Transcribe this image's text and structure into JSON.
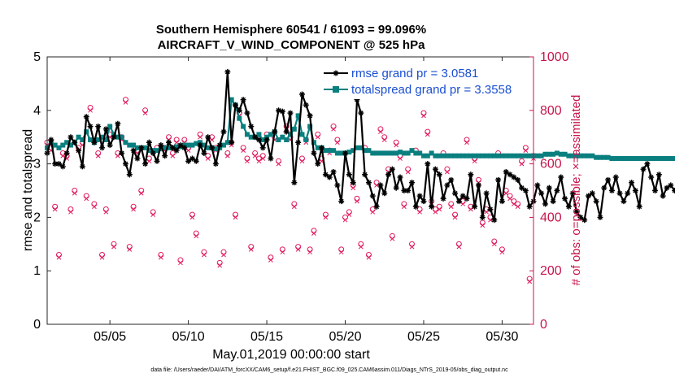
{
  "chart_data": {
    "type": "line",
    "title": "Southern Hemisphere 60541 / 61093 = 99.096%",
    "subtitle": "AIRCRAFT_V_WIND_COMPONENT @ 525 hPa",
    "xlabel": "May.01,2019 00:00:00 start",
    "ylabel": "rmse and totalspread",
    "ylabel_right": "# of obs: o=possible; ×=assimilated",
    "footnote": "data file: /Users/raeder/DAI/ATM_forcXX/CAM6_setup/f.e21.FHIST_BGC.f09_025.CAM6assim.011/Diags_NTrS_2019-05/obs_diag_output.nc",
    "xlim": [
      1.0,
      32.0
    ],
    "ylim": [
      0,
      5
    ],
    "ylim_right": [
      0,
      1000
    ],
    "x_ticks": [
      5,
      10,
      15,
      20,
      25,
      30
    ],
    "x_tick_labels": [
      "05/05",
      "05/10",
      "05/15",
      "05/20",
      "05/25",
      "05/30"
    ],
    "y_ticks": [
      0,
      1,
      2,
      3,
      4,
      5
    ],
    "y_tick_labels": [
      "0",
      "1",
      "2",
      "3",
      "4",
      "5"
    ],
    "y_right_ticks": [
      0,
      200,
      400,
      600,
      800,
      1000
    ],
    "y_right_tick_labels": [
      "0",
      "200",
      "400",
      "600",
      "800",
      "1000"
    ],
    "legend_position": "top-right",
    "series": [
      {
        "name": "rmse grand pr = 3.0581",
        "color": "#000000",
        "marker": "asterisk",
        "x_start": 1.0,
        "x_step": 0.25,
        "values": [
          3.2,
          3.45,
          3.0,
          3.0,
          2.95,
          3.2,
          3.5,
          3.4,
          3.25,
          2.95,
          3.88,
          3.7,
          3.4,
          3.7,
          3.3,
          3.65,
          3.35,
          3.5,
          3.75,
          3.2,
          3.0,
          2.8,
          3.25,
          3.1,
          3.3,
          3.0,
          3.4,
          3.2,
          3.05,
          3.35,
          3.15,
          3.4,
          3.3,
          3.25,
          3.35,
          3.3,
          3.05,
          3.1,
          3.05,
          3.35,
          3.2,
          3.5,
          3.3,
          3.0,
          3.35,
          3.6,
          4.72,
          3.4,
          4.1,
          4.0,
          4.2,
          3.95,
          3.7,
          3.5,
          3.45,
          3.3,
          3.45,
          3.1,
          3.6,
          4.0,
          3.98,
          3.6,
          3.95,
          2.65,
          3.4,
          4.3,
          4.1,
          3.9,
          3.2,
          3.0,
          3.3,
          2.8,
          2.75,
          2.85,
          2.6,
          2.3,
          3.2,
          2.8,
          2.65,
          4.2,
          3.95,
          2.8,
          2.65,
          2.4,
          2.2,
          2.6,
          2.45,
          2.8,
          2.9,
          2.55,
          2.75,
          2.5,
          2.5,
          2.65,
          2.2,
          2.4,
          2.3,
          3.0,
          2.2,
          2.9,
          2.8,
          2.35,
          2.6,
          2.7,
          2.45,
          2.3,
          2.4,
          2.35,
          2.8,
          2.2,
          2.6,
          2.0,
          2.45,
          2.15,
          1.95,
          2.7,
          2.3,
          2.85,
          2.8,
          2.75,
          2.7,
          2.55,
          2.5,
          2.2,
          2.3,
          2.6,
          2.45,
          2.25,
          2.55,
          2.3,
          2.5,
          2.75,
          2.35,
          2.2,
          2.45,
          2.1,
          2.0,
          1.95,
          2.4,
          2.45,
          2.3,
          2.0,
          2.55,
          2.7,
          2.5,
          2.75,
          2.45,
          2.3,
          2.45,
          2.65,
          2.5,
          2.2,
          2.9,
          3.0,
          2.75,
          2.5,
          2.8,
          2.4,
          2.55,
          2.6,
          2.5,
          2.65,
          2.8,
          2.9,
          2.7,
          2.6,
          2.4,
          2.95,
          3.1,
          3.3,
          3.45,
          3.2,
          3.1,
          3.5,
          3.65,
          3.6,
          3.55,
          3.75,
          3.4,
          3.7,
          3.2,
          3.1,
          3.4,
          3.6,
          3.3,
          3.5,
          3.55,
          3.65,
          3.7,
          3.3,
          3.0,
          3.2,
          3.3,
          3.4,
          3.55,
          3.6,
          3.5,
          3.1,
          2.9,
          3.5,
          3.3,
          3.2,
          2.45,
          3.3,
          3.25,
          3.2,
          3.15
        ]
      },
      {
        "name": "totalspread grand pr = 3.3558",
        "color": "#0a7f7f",
        "marker": "square",
        "x_start": 1.0,
        "x_step": 0.25,
        "values": [
          3.3,
          3.4,
          3.35,
          3.3,
          3.35,
          3.4,
          3.35,
          3.4,
          3.5,
          3.45,
          3.6,
          3.45,
          3.4,
          3.45,
          3.5,
          3.45,
          3.7,
          3.55,
          3.5,
          3.5,
          3.4,
          3.35,
          3.35,
          3.3,
          3.3,
          3.3,
          3.25,
          3.25,
          3.25,
          3.28,
          3.3,
          3.3,
          3.3,
          3.32,
          3.32,
          3.35,
          3.35,
          3.35,
          3.38,
          3.4,
          3.35,
          3.3,
          3.3,
          3.28,
          3.3,
          3.35,
          3.4,
          4.2,
          4.1,
          3.85,
          3.7,
          3.55,
          3.5,
          3.5,
          3.55,
          3.45,
          3.5,
          3.55,
          3.6,
          3.45,
          3.5,
          3.45,
          3.55,
          3.65,
          3.9,
          3.55,
          3.45,
          3.7,
          3.4,
          3.3,
          3.3,
          3.25,
          3.25,
          3.25,
          3.2,
          3.2,
          3.2,
          3.22,
          3.25,
          3.3,
          3.3,
          3.25,
          3.25,
          3.2,
          3.2,
          3.2,
          3.2,
          3.2,
          3.2,
          3.2,
          3.22,
          3.2,
          3.2,
          3.25,
          3.2,
          3.2,
          3.15,
          3.15,
          3.2,
          3.15,
          3.15,
          3.15,
          3.15,
          3.15,
          3.15,
          3.15,
          3.15,
          3.15,
          3.15,
          3.15,
          3.15,
          3.15,
          3.15,
          3.15,
          3.15,
          3.15,
          3.15,
          3.15,
          3.15,
          3.15,
          3.15,
          3.15,
          3.15,
          3.15,
          3.15,
          3.15,
          3.15,
          3.18,
          3.18,
          3.18,
          3.2,
          3.18,
          3.18,
          3.15,
          3.15,
          3.15,
          3.15,
          3.15,
          3.15,
          3.15,
          3.12,
          3.12,
          3.12,
          3.12,
          3.1,
          3.1,
          3.1,
          3.1,
          3.1,
          3.1,
          3.1,
          3.1,
          3.1,
          3.1,
          3.1,
          3.1,
          3.1,
          3.1,
          3.1,
          3.1,
          3.1,
          3.1,
          3.1,
          3.12,
          3.1,
          3.1,
          3.12,
          3.15,
          3.15,
          3.15,
          3.15,
          3.2,
          3.2,
          3.25,
          3.25,
          3.3,
          3.35,
          3.4,
          3.45,
          3.55,
          3.4,
          3.5,
          3.35,
          3.4,
          3.45,
          3.6,
          3.5,
          3.4,
          3.35,
          3.4,
          3.45,
          3.5,
          3.45,
          3.4,
          3.35,
          3.3,
          3.3,
          3.3,
          3.3,
          3.3,
          3.25,
          3.3,
          3.3,
          3.3,
          3.28
        ]
      }
    ],
    "obs_series": [
      {
        "name": "possible",
        "marker": "circle",
        "color": "#e0195a",
        "x_start": 1.0,
        "x_step": 0.25,
        "values": [
          680,
          660,
          440,
          260,
          640,
          630,
          430,
          500,
          660,
          680,
          480,
          810,
          450,
          640,
          260,
          430,
          710,
          300,
          640,
          700,
          840,
          290,
          440,
          650,
          500,
          800,
          620,
          420,
          660,
          260,
          660,
          700,
          640,
          690,
          240,
          690,
          660,
          410,
          340,
          710,
          270,
          630,
          700,
          660,
          230,
          270,
          640,
          680,
          410,
          790,
          660,
          620,
          290,
          640,
          620,
          630,
          710,
          250,
          700,
          610,
          280,
          740,
          700,
          450,
          290,
          620,
          690,
          280,
          350,
          710,
          620,
          410,
          650,
          740,
          690,
          280,
          400,
          420,
          520,
          470,
          300,
          660,
          260,
          430,
          530,
          730,
          700,
          580,
          330,
          680,
          630,
          450,
          580,
          300,
          650,
          430,
          790,
          720,
          460,
          430,
          440,
          640,
          580,
          450,
          410,
          300,
          460,
          690,
          440,
          620,
          540,
          380,
          430,
          400,
          310,
          640,
          280,
          500,
          480,
          460,
          450,
          610,
          660,
          170,
          630,
          760,
          720,
          450,
          720,
          420,
          630,
          480,
          540,
          500,
          310,
          450,
          430,
          740,
          770,
          620,
          420,
          480,
          510,
          760,
          410,
          580,
          420,
          570,
          300,
          460,
          600,
          480,
          460,
          670,
          440,
          640,
          590,
          470,
          770,
          590,
          460,
          500,
          440,
          600,
          460,
          250,
          510,
          420,
          360,
          800,
          770,
          450,
          510,
          400,
          670,
          450,
          710,
          680,
          320,
          580,
          390,
          430,
          600,
          720,
          480,
          650,
          410,
          700,
          470,
          650,
          670,
          680,
          260,
          400,
          660,
          540,
          420,
          480,
          360,
          700,
          700,
          680,
          640,
          460,
          300,
          700,
          680
        ]
      },
      {
        "name": "assimilated",
        "marker": "x",
        "color": "#e0195a",
        "x_start": 1.0,
        "x_step": 0.25,
        "values": [
          670,
          650,
          430,
          250,
          630,
          620,
          420,
          490,
          650,
          670,
          470,
          800,
          440,
          630,
          250,
          420,
          700,
          290,
          630,
          690,
          830,
          280,
          430,
          640,
          490,
          790,
          610,
          410,
          650,
          250,
          650,
          690,
          630,
          680,
          230,
          680,
          650,
          400,
          330,
          700,
          260,
          620,
          690,
          650,
          220,
          260,
          630,
          670,
          400,
          780,
          650,
          610,
          280,
          630,
          610,
          620,
          700,
          240,
          690,
          600,
          270,
          730,
          690,
          440,
          280,
          610,
          680,
          270,
          340,
          700,
          610,
          400,
          640,
          730,
          680,
          270,
          390,
          410,
          510,
          460,
          290,
          650,
          250,
          420,
          520,
          720,
          690,
          570,
          320,
          670,
          620,
          440,
          570,
          290,
          640,
          420,
          780,
          710,
          450,
          420,
          430,
          630,
          570,
          440,
          400,
          290,
          450,
          680,
          430,
          610,
          530,
          370,
          420,
          390,
          300,
          630,
          270,
          490,
          470,
          450,
          440,
          600,
          650,
          160,
          620,
          750,
          710,
          440,
          710,
          410,
          620,
          470,
          530,
          490,
          300,
          440,
          420,
          730,
          760,
          610,
          410,
          470,
          500,
          750,
          400,
          570,
          410,
          560,
          290,
          450,
          590,
          470,
          450,
          660,
          430,
          630,
          580,
          460,
          760,
          580,
          450,
          490,
          430,
          590,
          450,
          240,
          500,
          410,
          350,
          790,
          760,
          440,
          500,
          390,
          660,
          440,
          700,
          670,
          310,
          570,
          380,
          420,
          590,
          710,
          470,
          640,
          400,
          690,
          460,
          640,
          660,
          670,
          250,
          390,
          650,
          530,
          410,
          470,
          350,
          690,
          690,
          670,
          630,
          450,
          290,
          690,
          670
        ]
      }
    ]
  }
}
